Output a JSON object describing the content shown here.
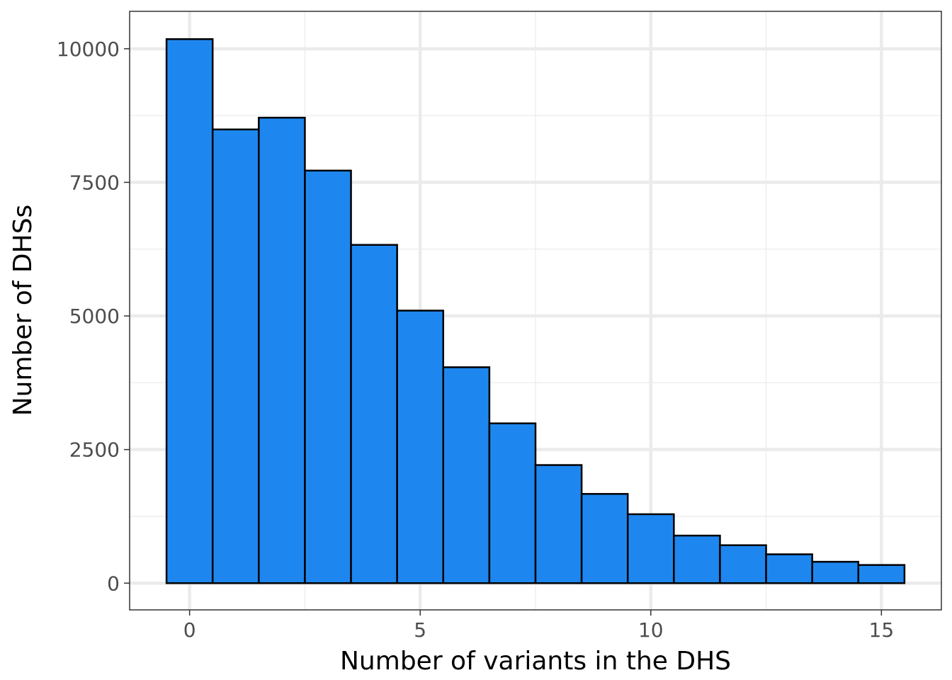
{
  "chart_data": {
    "type": "bar",
    "subtype": "histogram",
    "title": "",
    "xlabel": "Number of variants in the DHS",
    "ylabel": "Number of DHSs",
    "x": [
      0,
      1,
      2,
      3,
      4,
      5,
      6,
      7,
      8,
      9,
      10,
      11,
      12,
      13,
      14,
      15
    ],
    "values": [
      10180,
      8490,
      8710,
      7720,
      6330,
      5100,
      4040,
      2990,
      2210,
      1670,
      1290,
      890,
      710,
      540,
      400,
      340
    ],
    "bin_width": 1,
    "xlim": [
      -1.3,
      16.3
    ],
    "ylim": [
      -500,
      10700
    ],
    "xticks": [
      0,
      5,
      10,
      15
    ],
    "xtick_labels": [
      "0",
      "5",
      "10",
      "15"
    ],
    "yticks": [
      0,
      2500,
      5000,
      7500,
      10000
    ],
    "ytick_labels": [
      "0",
      "2500",
      "5000",
      "7500",
      "10000"
    ],
    "grid": true,
    "legend": "none",
    "colors": {
      "bar_fill": "#1e87ef",
      "bar_stroke": "#000000",
      "grid": "#ebebeb",
      "panel_border": "#333333"
    }
  }
}
